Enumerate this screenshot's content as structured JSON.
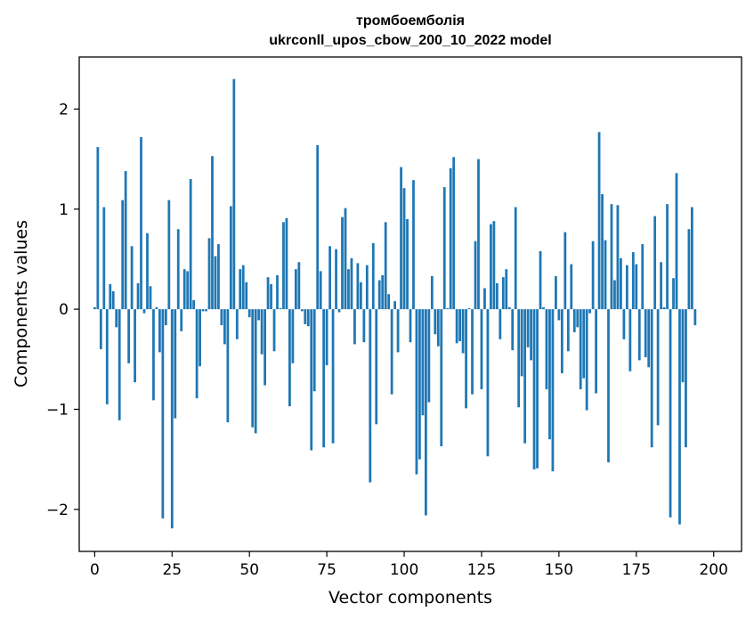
{
  "chart_data": {
    "type": "bar",
    "title": "тромбоемболія",
    "subtitle": "ukrconll_upos_cbow_200_10_2022 model",
    "xlabel": "Vector components",
    "ylabel": "Components values",
    "xlim": [
      -5,
      209
    ],
    "ylim": [
      -2.42,
      2.52
    ],
    "xticks": [
      0,
      25,
      50,
      75,
      100,
      125,
      150,
      175,
      200
    ],
    "yticks": [
      -2,
      -1,
      0,
      1,
      2
    ],
    "ytick_labels": [
      "−2",
      "−1",
      "0",
      "1",
      "2"
    ],
    "grid": false,
    "bar_color": "#1f77b4",
    "values": [
      0.02,
      1.62,
      -0.4,
      1.02,
      -0.95,
      0.25,
      0.18,
      -0.18,
      -1.11,
      1.09,
      1.38,
      -0.54,
      0.63,
      -0.73,
      0.26,
      1.72,
      -0.04,
      0.76,
      0.23,
      -0.91,
      0.02,
      -0.43,
      -2.09,
      -0.16,
      1.09,
      -2.19,
      -1.09,
      0.8,
      -0.22,
      0.4,
      0.38,
      1.3,
      0.09,
      -0.89,
      -0.57,
      -0.02,
      -0.02,
      0.71,
      1.53,
      0.53,
      0.65,
      -0.16,
      -0.35,
      -1.13,
      1.03,
      2.3,
      -0.3,
      0.4,
      0.44,
      0.27,
      -0.08,
      -1.18,
      -1.24,
      -0.11,
      -0.45,
      -0.76,
      0.32,
      0.25,
      -0.42,
      0.34,
      0.01,
      0.87,
      0.91,
      -0.97,
      -0.54,
      0.4,
      0.47,
      -0.02,
      -0.15,
      -0.17,
      -1.41,
      -0.82,
      1.64,
      0.38,
      -1.38,
      -0.56,
      0.63,
      -1.34,
      0.6,
      -0.03,
      0.92,
      1.01,
      0.4,
      0.51,
      -0.35,
      0.46,
      0.27,
      -0.33,
      0.44,
      -1.73,
      0.66,
      -1.15,
      0.29,
      0.34,
      0.87,
      0.15,
      -0.85,
      0.08,
      -0.43,
      1.42,
      1.21,
      0.9,
      -0.33,
      1.29,
      -1.65,
      -1.5,
      -1.06,
      -2.06,
      -0.93,
      0.33,
      -0.25,
      -0.37,
      -1.37,
      1.22,
      0.01,
      1.41,
      1.52,
      -0.34,
      -0.32,
      -0.44,
      -0.99,
      0.01,
      -0.85,
      0.68,
      1.5,
      -0.8,
      0.21,
      -1.47,
      0.85,
      0.88,
      0.26,
      -0.3,
      0.32,
      0.4,
      0.02,
      -0.41,
      1.02,
      -0.98,
      -0.67,
      -1.34,
      -0.38,
      -0.51,
      -1.6,
      -1.59,
      0.58,
      0.02,
      -0.8,
      -1.3,
      -1.62,
      0.33,
      -0.11,
      -0.64,
      0.77,
      -0.42,
      0.45,
      -0.23,
      -0.18,
      -0.8,
      -0.69,
      -1.01,
      -0.04,
      0.68,
      -0.84,
      1.77,
      1.15,
      0.69,
      -1.53,
      1.05,
      0.29,
      1.04,
      0.51,
      -0.3,
      0.44,
      -0.62,
      0.57,
      0.45,
      -0.51,
      0.65,
      -0.48,
      -0.58,
      -1.38,
      0.93,
      -1.16,
      0.47,
      0.02,
      1.05,
      -2.08,
      0.31,
      1.36,
      -2.15,
      -0.73,
      -1.38,
      0.8,
      1.02,
      -0.16
    ]
  }
}
